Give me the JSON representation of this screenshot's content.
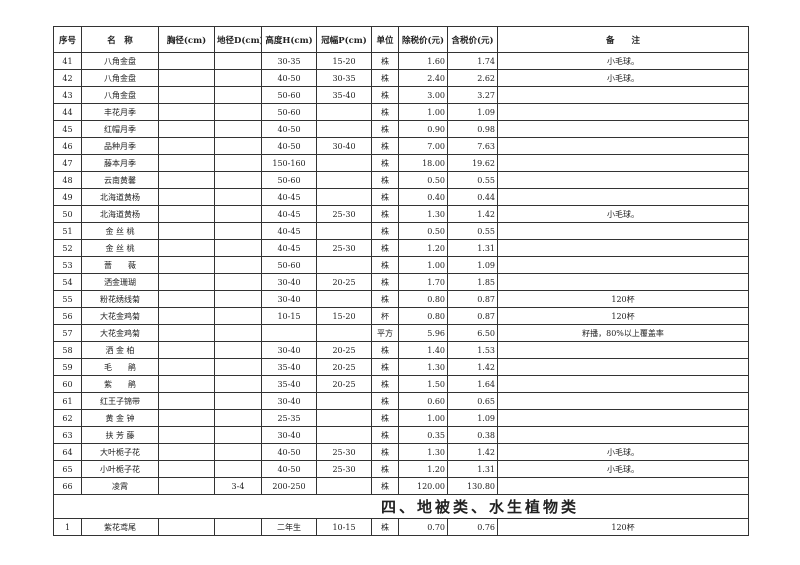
{
  "headers": [
    "序号",
    "名　称",
    "胸径(cm)",
    "地径D(cm)",
    "高度H(cm)",
    "冠幅P(cm)",
    "单位",
    "除税价(元)",
    "含税价(元)",
    "备　　注"
  ],
  "rows": [
    [
      "41",
      "八角金盘",
      "",
      "",
      "30-35",
      "15-20",
      "株",
      "1.60",
      "1.74",
      "小毛球。"
    ],
    [
      "42",
      "八角金盘",
      "",
      "",
      "40-50",
      "30-35",
      "株",
      "2.40",
      "2.62",
      "小毛球。"
    ],
    [
      "43",
      "八角金盘",
      "",
      "",
      "50-60",
      "35-40",
      "株",
      "3.00",
      "3.27",
      ""
    ],
    [
      "44",
      "丰花月季",
      "",
      "",
      "50-60",
      "",
      "株",
      "1.00",
      "1.09",
      ""
    ],
    [
      "45",
      "红帽月季",
      "",
      "",
      "40-50",
      "",
      "株",
      "0.90",
      "0.98",
      ""
    ],
    [
      "46",
      "品种月季",
      "",
      "",
      "40-50",
      "30-40",
      "株",
      "7.00",
      "7.63",
      ""
    ],
    [
      "47",
      "藤本月季",
      "",
      "",
      "150-160",
      "",
      "株",
      "18.00",
      "19.62",
      ""
    ],
    [
      "48",
      "云南黄馨",
      "",
      "",
      "50-60",
      "",
      "株",
      "0.50",
      "0.55",
      ""
    ],
    [
      "49",
      "北海道黄杨",
      "",
      "",
      "40-45",
      "",
      "株",
      "0.40",
      "0.44",
      ""
    ],
    [
      "50",
      "北海道黄杨",
      "",
      "",
      "40-45",
      "25-30",
      "株",
      "1.30",
      "1.42",
      "小毛球。"
    ],
    [
      "51",
      "金 丝 桃",
      "",
      "",
      "40-45",
      "",
      "株",
      "0.50",
      "0.55",
      ""
    ],
    [
      "52",
      "金 丝 桃",
      "",
      "",
      "40-45",
      "25-30",
      "株",
      "1.20",
      "1.31",
      ""
    ],
    [
      "53",
      "蔷　　薇",
      "",
      "",
      "50-60",
      "",
      "株",
      "1.00",
      "1.09",
      ""
    ],
    [
      "54",
      "洒金珊瑚",
      "",
      "",
      "30-40",
      "20-25",
      "株",
      "1.70",
      "1.85",
      ""
    ],
    [
      "55",
      "粉花绣线菊",
      "",
      "",
      "30-40",
      "",
      "株",
      "0.80",
      "0.87",
      "120杯"
    ],
    [
      "56",
      "大花金鸡菊",
      "",
      "",
      "10-15",
      "15-20",
      "杯",
      "0.80",
      "0.87",
      "120杯"
    ],
    [
      "57",
      "大花金鸡菊",
      "",
      "",
      "",
      "",
      "平方",
      "5.96",
      "6.50",
      "籽播，80%以上覆盖率"
    ],
    [
      "58",
      "洒 金 柏",
      "",
      "",
      "30-40",
      "20-25",
      "株",
      "1.40",
      "1.53",
      ""
    ],
    [
      "59",
      "毛　　鹃",
      "",
      "",
      "35-40",
      "20-25",
      "株",
      "1.30",
      "1.42",
      ""
    ],
    [
      "60",
      "紫　　鹃",
      "",
      "",
      "35-40",
      "20-25",
      "株",
      "1.50",
      "1.64",
      ""
    ],
    [
      "61",
      "红王子锦带",
      "",
      "",
      "30-40",
      "",
      "株",
      "0.60",
      "0.65",
      ""
    ],
    [
      "62",
      "黄 金 钟",
      "",
      "",
      "25-35",
      "",
      "株",
      "1.00",
      "1.09",
      ""
    ],
    [
      "63",
      "扶 芳 藤",
      "",
      "",
      "30-40",
      "",
      "株",
      "0.35",
      "0.38",
      ""
    ],
    [
      "64",
      "大叶栀子花",
      "",
      "",
      "40-50",
      "25-30",
      "株",
      "1.30",
      "1.42",
      "小毛球。"
    ],
    [
      "65",
      "小叶栀子花",
      "",
      "",
      "40-50",
      "25-30",
      "株",
      "1.20",
      "1.31",
      "小毛球。"
    ],
    [
      "66",
      "凌霄",
      "",
      "3-4",
      "200-250",
      "",
      "株",
      "120.00",
      "130.80",
      ""
    ]
  ],
  "section_title": "四、地被类、水生植物类",
  "rows2": [
    [
      "1",
      "紫花鸢尾",
      "",
      "",
      "二年生",
      "10-15",
      "株",
      "0.70",
      "0.76",
      "120杯"
    ]
  ]
}
